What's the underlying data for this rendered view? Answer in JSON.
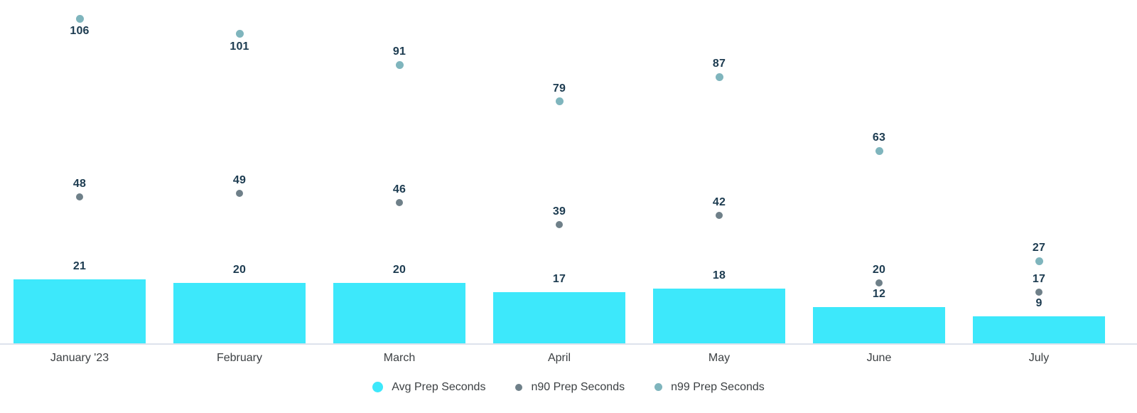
{
  "chart_data": {
    "type": "bar",
    "title": "",
    "xlabel": "",
    "ylabel": "",
    "categories": [
      "January '23",
      "February",
      "March",
      "April",
      "May",
      "June",
      "July"
    ],
    "series": [
      {
        "name": "Avg Prep Seconds",
        "type": "bar",
        "color": "#3DE8FB",
        "marker_size": 15,
        "values": [
          21,
          20,
          20,
          17,
          18,
          12,
          9
        ]
      },
      {
        "name": "n90 Prep Seconds",
        "type": "scatter",
        "color": "#6F8089",
        "marker_size": 10,
        "values": [
          48,
          49,
          46,
          39,
          42,
          20,
          17
        ]
      },
      {
        "name": "n99 Prep Seconds",
        "type": "scatter",
        "color": "#7FB5BD",
        "marker_size": 11,
        "values": [
          106,
          101,
          91,
          79,
          87,
          63,
          27
        ]
      }
    ],
    "ylim": [
      0,
      112
    ],
    "grid": false,
    "y_axis_visible": false,
    "legend_position": "bottom",
    "annotations": "every bar and point labeled with its value",
    "colors": {
      "annotation_text": "#1C3B50",
      "axis_text": "#3C4043",
      "baseline": "#DDE2EC",
      "background": "#FFFFFF"
    }
  }
}
